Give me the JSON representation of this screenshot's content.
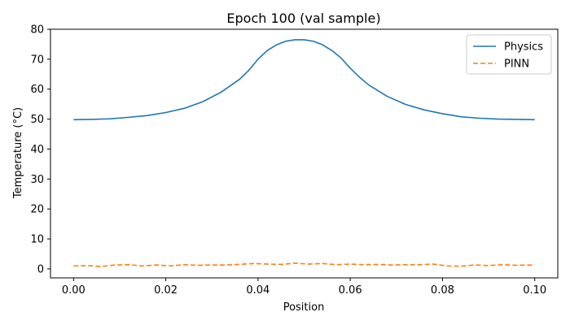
{
  "chart_data": {
    "type": "line",
    "title": "Epoch 100 (val sample)",
    "xlabel": "Position",
    "ylabel": "Temperature (°C)",
    "xlim": [
      -0.005,
      0.105
    ],
    "ylim": [
      -3,
      80
    ],
    "xticks": [
      0.0,
      0.02,
      0.04,
      0.06,
      0.08,
      0.1
    ],
    "xtick_labels": [
      "0.00",
      "0.02",
      "0.04",
      "0.06",
      "0.08",
      "0.10"
    ],
    "yticks": [
      0,
      10,
      20,
      30,
      40,
      50,
      60,
      70,
      80
    ],
    "ytick_labels": [
      "0",
      "10",
      "20",
      "30",
      "40",
      "50",
      "60",
      "70",
      "80"
    ],
    "grid": false,
    "legend": "top-right",
    "series": [
      {
        "name": "Physics",
        "color": "#1f77b4",
        "style": "solid",
        "x": [
          0.0,
          0.004,
          0.008,
          0.012,
          0.016,
          0.02,
          0.024,
          0.028,
          0.032,
          0.036,
          0.038,
          0.04,
          0.042,
          0.044,
          0.046,
          0.048,
          0.05,
          0.052,
          0.054,
          0.056,
          0.058,
          0.06,
          0.062,
          0.064,
          0.068,
          0.072,
          0.076,
          0.08,
          0.084,
          0.088,
          0.092,
          0.096,
          0.1
        ],
        "y": [
          49.8,
          49.9,
          50.1,
          50.6,
          51.2,
          52.2,
          53.6,
          55.8,
          59.0,
          63.3,
          66.3,
          70.0,
          72.9,
          74.8,
          76.0,
          76.5,
          76.5,
          76.0,
          74.8,
          72.9,
          70.4,
          67.0,
          64.0,
          61.4,
          57.6,
          54.9,
          53.1,
          51.8,
          50.8,
          50.3,
          50.0,
          49.9,
          49.8
        ]
      },
      {
        "name": "PINN",
        "color": "#ff7f0e",
        "style": "dashed",
        "x": [
          0.0,
          0.003,
          0.006,
          0.009,
          0.012,
          0.015,
          0.018,
          0.021,
          0.024,
          0.027,
          0.03,
          0.033,
          0.036,
          0.039,
          0.042,
          0.045,
          0.048,
          0.051,
          0.054,
          0.057,
          0.06,
          0.063,
          0.066,
          0.069,
          0.072,
          0.075,
          0.078,
          0.081,
          0.084,
          0.087,
          0.09,
          0.093,
          0.096,
          0.1
        ],
        "y": [
          1.0,
          1.1,
          0.8,
          1.3,
          1.4,
          1.0,
          1.3,
          1.0,
          1.4,
          1.2,
          1.3,
          1.3,
          1.5,
          1.8,
          1.6,
          1.5,
          1.9,
          1.6,
          1.8,
          1.4,
          1.6,
          1.4,
          1.5,
          1.3,
          1.4,
          1.4,
          1.6,
          1.0,
          0.9,
          1.3,
          1.1,
          1.4,
          1.2,
          1.3
        ]
      }
    ]
  }
}
